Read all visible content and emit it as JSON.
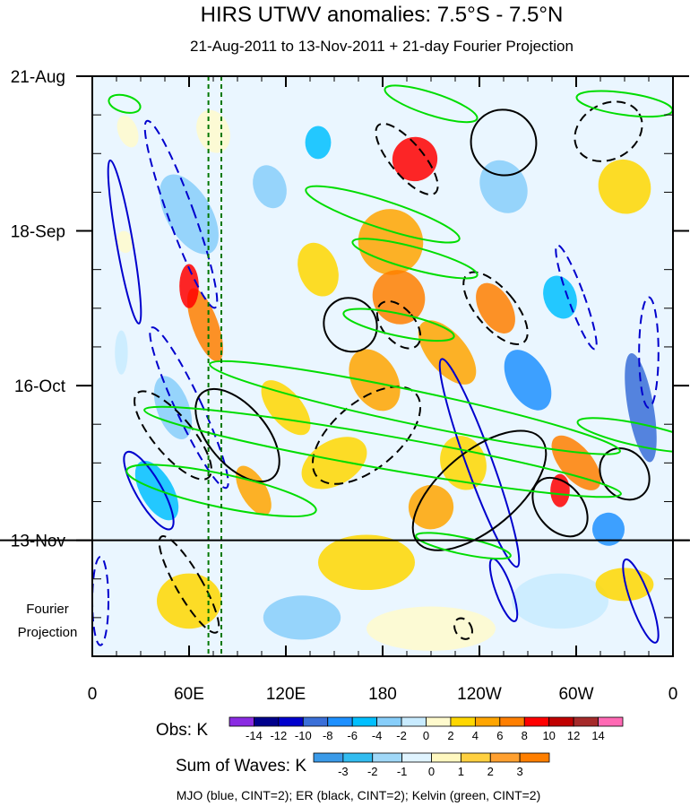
{
  "chart_data": {
    "type": "heatmap",
    "title": "HIRS UTWV anomalies: 7.5°S - 7.5°N",
    "subtitle": "21-Aug-2011 to 13-Nov-2011 + 21-day Fourier Projection",
    "y_ticks": [
      {
        "label": "21-Aug",
        "day": 0
      },
      {
        "label": "18-Sep",
        "day": 28
      },
      {
        "label": "16-Oct",
        "day": 56
      },
      {
        "label": "13-Nov",
        "day": 84
      }
    ],
    "y_range_days": [
      0,
      105
    ],
    "projection_label_line1": "Fourier",
    "projection_label_line2": "Projection",
    "x_ticks": [
      {
        "label": "0",
        "lon": 0
      },
      {
        "label": "60E",
        "lon": 60
      },
      {
        "label": "120E",
        "lon": 120
      },
      {
        "label": "180",
        "lon": 180
      },
      {
        "label": "120W",
        "lon": 240
      },
      {
        "label": "60W",
        "lon": 300
      },
      {
        "label": "0",
        "lon": 360
      }
    ],
    "x_range_lon": [
      0,
      360
    ],
    "reference_lines_lon": [
      72,
      80
    ],
    "obs_colorbar": {
      "label": "Obs: K",
      "tick_labels": [
        "-14",
        "-12",
        "-10",
        "-8",
        "-6",
        "-4",
        "-2",
        "0",
        "2",
        "4",
        "6",
        "8",
        "10",
        "12",
        "14"
      ],
      "colors": [
        "#8a2be2",
        "#00008b",
        "#0000cd",
        "#3a6fd8",
        "#1e90ff",
        "#00bfff",
        "#87cefa",
        "#c8ebff",
        "#fffacd",
        "#ffd700",
        "#ffa500",
        "#ff7f00",
        "#ff0000",
        "#c00000",
        "#a52a2a",
        "#ff69b4"
      ]
    },
    "waves_colorbar": {
      "label": "Sum of Waves: K",
      "tick_labels": [
        "-3",
        "-2",
        "-1",
        "0",
        "1",
        "2",
        "3"
      ],
      "colors": [
        "#3a9ae8",
        "#32bcf0",
        "#a0d8f8",
        "#e0f4ff",
        "#fff8c0",
        "#ffd040",
        "#ffa030",
        "#ff7f00"
      ]
    },
    "footer": "MJO (blue, CINT=2); ER (black, CINT=2); Kelvin (green, CINT=2)",
    "series": [
      {
        "name": "MJO",
        "color": "#0000cd"
      },
      {
        "name": "ER",
        "color": "#000000"
      },
      {
        "name": "Kelvin",
        "color": "#00dd00"
      }
    ]
  }
}
